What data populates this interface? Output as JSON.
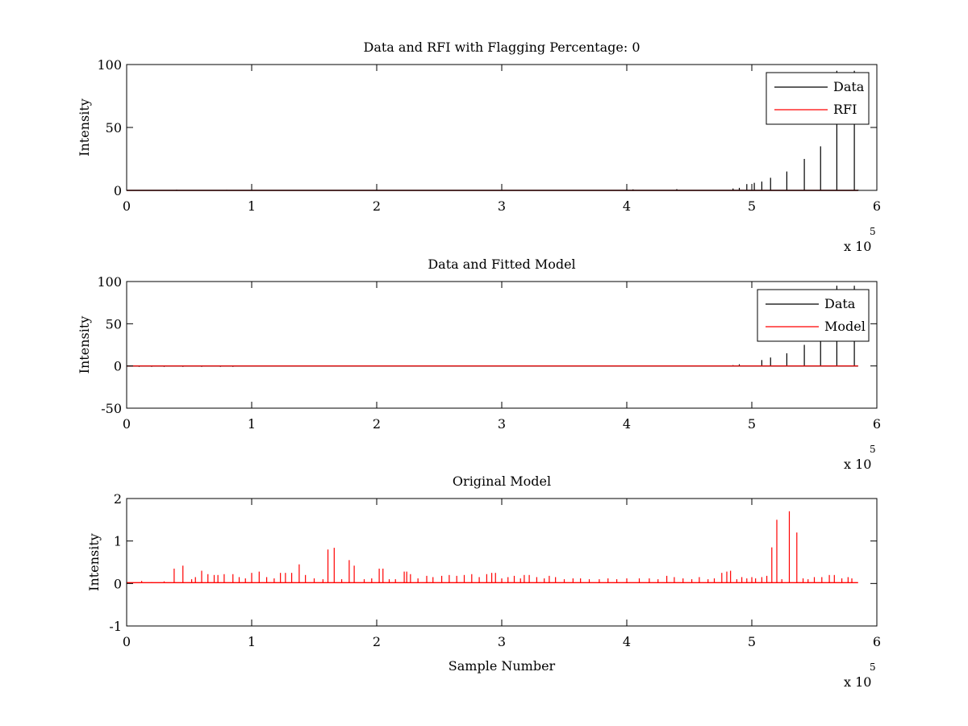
{
  "figure": {
    "background": "#ffffff",
    "colors": {
      "data": "#000000",
      "rfi": "#ff0000",
      "model": "#ff0000"
    }
  },
  "chart_data": [
    {
      "type": "line",
      "title": "Data and RFI with Flagging Percentage: 0",
      "xlabel": "",
      "ylabel": "Intensity",
      "xlim": [
        0,
        600000
      ],
      "ylim": [
        0,
        100
      ],
      "xticks": [
        0,
        1,
        2,
        3,
        4,
        5,
        6
      ],
      "yticks": [
        0,
        50,
        100
      ],
      "x_multiplier": "x 10",
      "x_multiplier_exp": "5",
      "grid": false,
      "legend": {
        "placement": "top-right",
        "entries": [
          "Data",
          "RFI"
        ]
      },
      "series": [
        {
          "name": "Data",
          "color": "#000000",
          "baseline": 0,
          "x": [
            0,
            40000,
            60000,
            80000,
            200000,
            300000,
            400000,
            405000,
            440000,
            485000,
            490000,
            496000,
            502000,
            508000,
            515000,
            528000,
            542000,
            555000,
            568000,
            582000,
            585000
          ],
          "y": [
            0,
            0.5,
            0.3,
            0.4,
            0.3,
            0.3,
            1,
            0.8,
            1,
            1.5,
            2,
            5,
            6,
            7,
            10,
            15,
            25,
            35,
            95,
            95,
            0.5
          ]
        },
        {
          "name": "RFI",
          "color": "#ff0000",
          "x": [
            0,
            585000
          ],
          "y": [
            0,
            0
          ]
        }
      ]
    },
    {
      "type": "line",
      "title": "Data and Fitted Model",
      "xlabel": "",
      "ylabel": "Intensity",
      "xlim": [
        0,
        600000
      ],
      "ylim": [
        -50,
        100
      ],
      "xticks": [
        0,
        1,
        2,
        3,
        4,
        5,
        6
      ],
      "yticks": [
        -50,
        0,
        50,
        100
      ],
      "x_multiplier": "x 10",
      "x_multiplier_exp": "5",
      "grid": false,
      "legend": {
        "placement": "top-right",
        "entries": [
          "Data",
          "Model"
        ]
      },
      "series": [
        {
          "name": "Data",
          "color": "#000000",
          "baseline": 0,
          "x": [
            0,
            10000,
            20000,
            30000,
            45000,
            60000,
            75000,
            85000,
            485000,
            490000,
            508000,
            515000,
            528000,
            542000,
            555000,
            568000,
            582000
          ],
          "y": [
            0,
            -1,
            -1,
            -1,
            -1,
            -1,
            -1,
            -1,
            1,
            2,
            7,
            10,
            15,
            25,
            35,
            95,
            95
          ]
        },
        {
          "name": "Model",
          "color": "#ff0000",
          "x": [
            0,
            585000
          ],
          "y": [
            0,
            0
          ]
        }
      ]
    },
    {
      "type": "line",
      "title": "Original Model",
      "xlabel": "Sample Number",
      "ylabel": "Intensity",
      "xlim": [
        0,
        600000
      ],
      "ylim": [
        -1,
        2
      ],
      "xticks": [
        0,
        1,
        2,
        3,
        4,
        5,
        6
      ],
      "yticks": [
        -1,
        0,
        1,
        2
      ],
      "x_multiplier": "x 10",
      "x_multiplier_exp": "5",
      "grid": false,
      "legend": null,
      "series": [
        {
          "name": "",
          "color": "#ff0000",
          "baseline": 0.02,
          "x": [
            12000,
            20000,
            30000,
            38000,
            45000,
            52000,
            55000,
            60000,
            65000,
            70000,
            73000,
            78000,
            85000,
            90000,
            95000,
            100000,
            106000,
            112000,
            118000,
            123000,
            127000,
            132000,
            138000,
            143000,
            150000,
            157000,
            161000,
            166000,
            172000,
            178000,
            182000,
            190000,
            196000,
            202000,
            205000,
            210000,
            215000,
            222000,
            224000,
            227000,
            233000,
            240000,
            245000,
            252000,
            258000,
            264000,
            270000,
            276000,
            282000,
            288000,
            292000,
            295000,
            300000,
            305000,
            310000,
            315000,
            318000,
            322000,
            328000,
            334000,
            338000,
            343000,
            350000,
            357000,
            363000,
            370000,
            378000,
            385000,
            392000,
            400000,
            410000,
            418000,
            425000,
            432000,
            438000,
            445000,
            452000,
            458000,
            465000,
            470000,
            476000,
            480000,
            483000,
            488000,
            492000,
            496000,
            500000,
            503000,
            508000,
            512000,
            516000,
            520000,
            524000,
            530000,
            536000,
            541000,
            545000,
            550000,
            556000,
            562000,
            566000,
            572000,
            577000,
            580000
          ],
          "y": [
            0.06,
            0.03,
            0.05,
            0.35,
            0.42,
            0.1,
            0.15,
            0.3,
            0.22,
            0.2,
            0.2,
            0.22,
            0.22,
            0.15,
            0.12,
            0.25,
            0.28,
            0.15,
            0.12,
            0.25,
            0.25,
            0.25,
            0.45,
            0.2,
            0.12,
            0.1,
            0.8,
            0.84,
            0.1,
            0.55,
            0.42,
            0.1,
            0.12,
            0.35,
            0.35,
            0.1,
            0.1,
            0.28,
            0.28,
            0.22,
            0.12,
            0.18,
            0.15,
            0.18,
            0.2,
            0.18,
            0.2,
            0.22,
            0.15,
            0.22,
            0.25,
            0.25,
            0.12,
            0.15,
            0.18,
            0.12,
            0.2,
            0.2,
            0.15,
            0.12,
            0.18,
            0.15,
            0.1,
            0.12,
            0.12,
            0.1,
            0.1,
            0.12,
            0.1,
            0.12,
            0.12,
            0.12,
            0.1,
            0.18,
            0.15,
            0.12,
            0.1,
            0.15,
            0.1,
            0.12,
            0.25,
            0.28,
            0.3,
            0.1,
            0.15,
            0.12,
            0.15,
            0.12,
            0.15,
            0.18,
            0.85,
            1.5,
            0.1,
            1.7,
            1.2,
            0.12,
            0.1,
            0.15,
            0.15,
            0.2,
            0.2,
            0.12,
            0.15,
            0.12
          ]
        }
      ]
    }
  ]
}
